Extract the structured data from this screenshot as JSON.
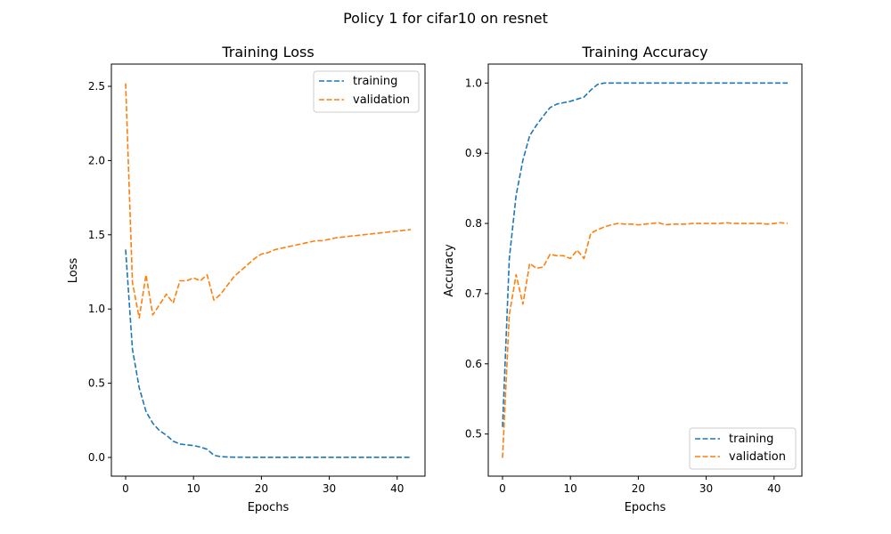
{
  "figure": {
    "suptitle": "Policy 1 for cifar10 on resnet"
  },
  "colors": {
    "training": "#1f77b4",
    "validation": "#ff7f0e"
  },
  "chart_data": [
    {
      "type": "line",
      "title": "Training Loss",
      "xlabel": "Epochs",
      "ylabel": "Loss",
      "xlim": [
        -2.1,
        44.1
      ],
      "ylim": [
        -0.126,
        2.65
      ],
      "xticks": [
        0,
        10,
        20,
        30,
        40
      ],
      "yticks": [
        0.0,
        0.5,
        1.0,
        1.5,
        2.0,
        2.5
      ],
      "ytick_labels": [
        "0.0",
        "0.5",
        "1.0",
        "1.5",
        "2.0",
        "2.5"
      ],
      "legend": "top-right",
      "grid": false,
      "series": [
        {
          "name": "training",
          "style": "dashed",
          "x": [
            0,
            1,
            2,
            3,
            4,
            5,
            6,
            7,
            8,
            9,
            10,
            11,
            12,
            13,
            14,
            15,
            16,
            17,
            18,
            19,
            20,
            21,
            22,
            23,
            24,
            25,
            26,
            27,
            28,
            29,
            30,
            31,
            32,
            33,
            34,
            35,
            36,
            37,
            38,
            39,
            40,
            41,
            42
          ],
          "values": [
            1.4,
            0.73,
            0.47,
            0.31,
            0.23,
            0.18,
            0.15,
            0.11,
            0.09,
            0.085,
            0.08,
            0.07,
            0.055,
            0.015,
            0.005,
            0.003,
            0.002,
            0.002,
            0.001,
            0.001,
            0.001,
            0.001,
            0.001,
            0.001,
            0.001,
            0.001,
            0.001,
            0.001,
            0.001,
            0.001,
            0.001,
            0.001,
            0.001,
            0.001,
            0.001,
            0.001,
            0.001,
            0.001,
            0.001,
            0.001,
            0.001,
            0.001,
            0.001
          ]
        },
        {
          "name": "validation",
          "style": "dashed",
          "x": [
            0,
            1,
            2,
            3,
            4,
            5,
            6,
            7,
            8,
            9,
            10,
            11,
            12,
            13,
            14,
            15,
            16,
            17,
            18,
            19,
            20,
            21,
            22,
            23,
            24,
            25,
            26,
            27,
            28,
            29,
            30,
            31,
            32,
            33,
            34,
            35,
            36,
            37,
            38,
            39,
            40,
            41,
            42
          ],
          "values": [
            2.52,
            1.18,
            0.94,
            1.23,
            0.96,
            1.03,
            1.1,
            1.04,
            1.19,
            1.19,
            1.21,
            1.19,
            1.23,
            1.06,
            1.1,
            1.16,
            1.22,
            1.26,
            1.3,
            1.34,
            1.37,
            1.38,
            1.4,
            1.41,
            1.42,
            1.43,
            1.44,
            1.45,
            1.46,
            1.46,
            1.47,
            1.48,
            1.485,
            1.49,
            1.495,
            1.5,
            1.505,
            1.51,
            1.515,
            1.52,
            1.525,
            1.53,
            1.535
          ]
        }
      ]
    },
    {
      "type": "line",
      "title": "Training Accuracy",
      "xlabel": "Epochs",
      "ylabel": "Accuracy",
      "xlim": [
        -2.1,
        44.1
      ],
      "ylim": [
        0.44,
        1.027
      ],
      "xticks": [
        0,
        10,
        20,
        30,
        40
      ],
      "yticks": [
        0.5,
        0.6,
        0.7,
        0.8,
        0.9,
        1.0
      ],
      "ytick_labels": [
        "0.5",
        "0.6",
        "0.7",
        "0.8",
        "0.9",
        "1.0"
      ],
      "legend": "bottom-right",
      "grid": false,
      "series": [
        {
          "name": "training",
          "style": "dashed",
          "x": [
            0,
            1,
            2,
            3,
            4,
            5,
            6,
            7,
            8,
            9,
            10,
            11,
            12,
            13,
            14,
            15,
            16,
            17,
            18,
            19,
            20,
            21,
            22,
            23,
            24,
            25,
            26,
            27,
            28,
            29,
            30,
            31,
            32,
            33,
            34,
            35,
            36,
            37,
            38,
            39,
            40,
            41,
            42
          ],
          "values": [
            0.51,
            0.75,
            0.84,
            0.89,
            0.925,
            0.94,
            0.953,
            0.965,
            0.97,
            0.972,
            0.974,
            0.977,
            0.98,
            0.99,
            0.998,
            1.0,
            1.0,
            1.0,
            1.0,
            1.0,
            1.0,
            1.0,
            1.0,
            1.0,
            1.0,
            1.0,
            1.0,
            1.0,
            1.0,
            1.0,
            1.0,
            1.0,
            1.0,
            1.0,
            1.0,
            1.0,
            1.0,
            1.0,
            1.0,
            1.0,
            1.0,
            1.0,
            1.0
          ]
        },
        {
          "name": "validation",
          "style": "dashed",
          "x": [
            0,
            1,
            2,
            3,
            4,
            5,
            6,
            7,
            8,
            9,
            10,
            11,
            12,
            13,
            14,
            15,
            16,
            17,
            18,
            19,
            20,
            21,
            22,
            23,
            24,
            25,
            26,
            27,
            28,
            29,
            30,
            31,
            32,
            33,
            34,
            35,
            36,
            37,
            38,
            39,
            40,
            41,
            42
          ],
          "values": [
            0.466,
            0.67,
            0.727,
            0.685,
            0.743,
            0.736,
            0.738,
            0.756,
            0.754,
            0.754,
            0.75,
            0.762,
            0.75,
            0.786,
            0.791,
            0.795,
            0.798,
            0.8,
            0.799,
            0.799,
            0.798,
            0.799,
            0.8,
            0.801,
            0.798,
            0.799,
            0.799,
            0.799,
            0.8,
            0.8,
            0.8,
            0.8,
            0.8,
            0.801,
            0.8,
            0.8,
            0.8,
            0.8,
            0.8,
            0.799,
            0.8,
            0.801,
            0.8
          ]
        }
      ]
    }
  ]
}
